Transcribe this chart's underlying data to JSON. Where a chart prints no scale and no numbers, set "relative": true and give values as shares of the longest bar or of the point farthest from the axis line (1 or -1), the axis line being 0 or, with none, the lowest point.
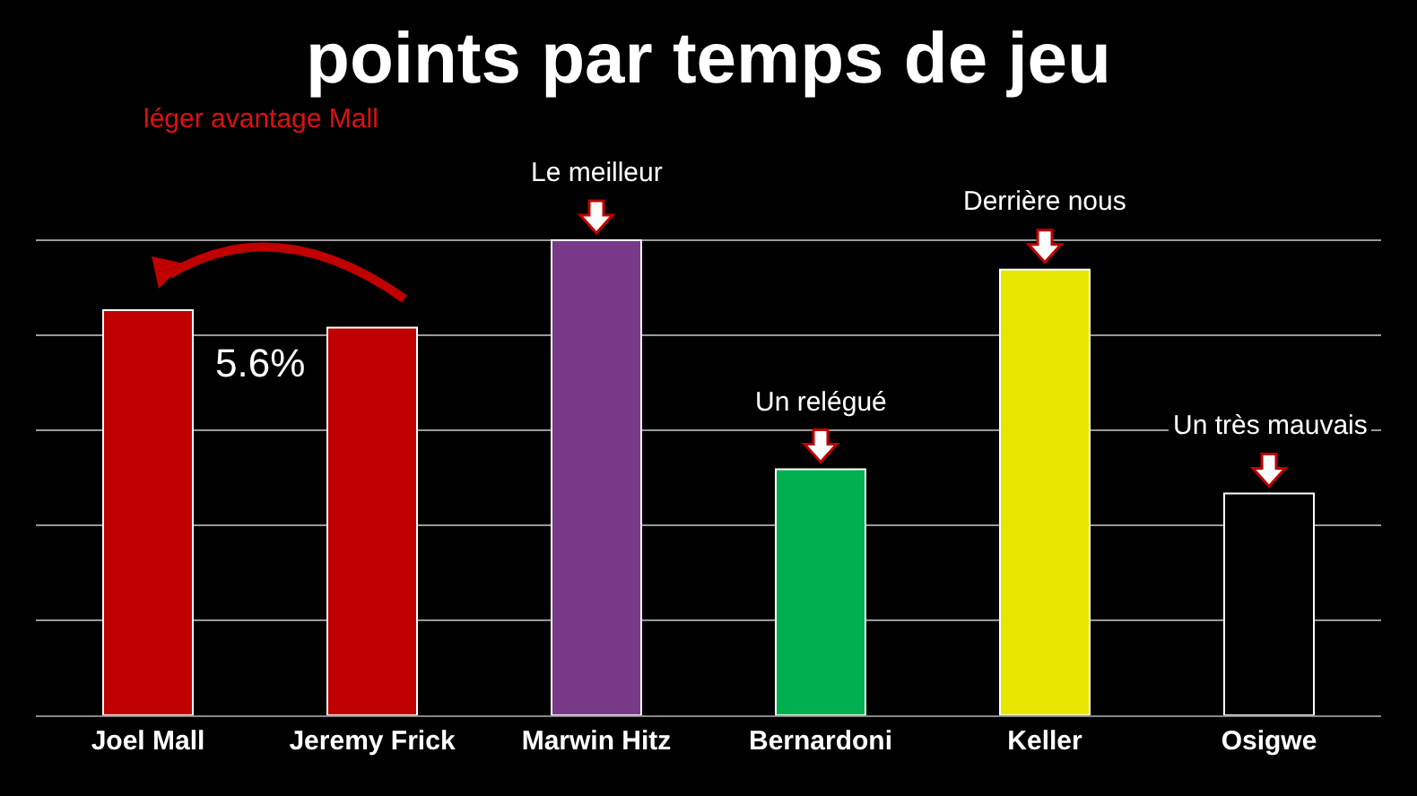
{
  "chart_data": {
    "type": "bar",
    "title": "points par temps de jeu",
    "categories": [
      "Joel Mall",
      "Jeremy Frick",
      "Marwin Hitz",
      "Bernardoni",
      "Keller",
      "Osigwe"
    ],
    "values": [
      0.853,
      0.816,
      1,
      0.518,
      0.938,
      0.467
    ],
    "colors": [
      "#c00000",
      "#c00000",
      "#7a3a8a",
      "#00b050",
      "#e6e600",
      "#000000"
    ],
    "relative": true,
    "grid": "y",
    "annotations": [
      "léger avantage Mall",
      "5.6%",
      {
        "text": "Le meilleur",
        "x": "Marwin Hitz",
        "y": 1
      },
      {
        "text": "Un relégué",
        "x": "Bernardoni",
        "y": 0.518
      },
      {
        "text": "Derrière nous",
        "x": "Keller",
        "y": 0.938
      },
      {
        "text": "Un très mauvais",
        "x": "Osigwe",
        "y": 0.467
      }
    ]
  }
}
